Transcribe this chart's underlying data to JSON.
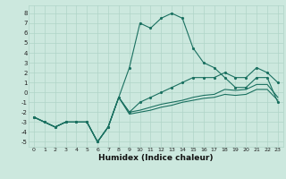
{
  "xlabel": "Humidex (Indice chaleur)",
  "xlim": [
    -0.5,
    23.5
  ],
  "ylim": [
    -5.5,
    8.8
  ],
  "xticks": [
    0,
    1,
    2,
    3,
    4,
    5,
    6,
    7,
    8,
    9,
    10,
    11,
    12,
    13,
    14,
    15,
    16,
    17,
    18,
    19,
    20,
    21,
    22,
    23
  ],
  "yticks": [
    -5,
    -4,
    -3,
    -2,
    -1,
    0,
    1,
    2,
    3,
    4,
    5,
    6,
    7,
    8
  ],
  "bg_color": "#cce8de",
  "line_color": "#1a7060",
  "grid_color": "#b0d4c8",
  "lines": [
    {
      "x": [
        0,
        1,
        2,
        3,
        4,
        5,
        6,
        7,
        8,
        9,
        10,
        11,
        12,
        13,
        14,
        15,
        16,
        17,
        18,
        19,
        20,
        21,
        22,
        23
      ],
      "y": [
        -2.5,
        -3.0,
        -3.5,
        -3.0,
        -3.0,
        -3.0,
        -5.0,
        -3.5,
        -0.5,
        2.5,
        7.0,
        6.5,
        7.5,
        8.0,
        7.5,
        4.5,
        3.0,
        2.5,
        1.5,
        0.5,
        0.5,
        1.5,
        1.5,
        -1.0
      ],
      "marker": true
    },
    {
      "x": [
        0,
        1,
        2,
        3,
        4,
        5,
        6,
        7,
        8,
        9,
        10,
        11,
        12,
        13,
        14,
        15,
        16,
        17,
        18,
        19,
        20,
        21,
        22,
        23
      ],
      "y": [
        -2.5,
        -3.0,
        -3.5,
        -3.0,
        -3.0,
        -3.0,
        -5.0,
        -3.5,
        -0.5,
        -2.0,
        -1.0,
        -0.5,
        0.0,
        0.5,
        1.0,
        1.5,
        1.5,
        1.5,
        2.0,
        1.5,
        1.5,
        2.5,
        2.0,
        1.0
      ],
      "marker": true
    },
    {
      "x": [
        0,
        1,
        2,
        3,
        4,
        5,
        6,
        7,
        8,
        9,
        10,
        11,
        12,
        13,
        14,
        15,
        16,
        17,
        18,
        19,
        20,
        21,
        22,
        23
      ],
      "y": [
        -2.5,
        -3.0,
        -3.5,
        -3.0,
        -3.0,
        -3.0,
        -5.0,
        -3.5,
        -0.5,
        -2.0,
        -1.8,
        -1.5,
        -1.2,
        -1.0,
        -0.8,
        -0.5,
        -0.3,
        -0.2,
        0.3,
        0.2,
        0.3,
        0.8,
        0.8,
        -0.5
      ],
      "marker": false
    },
    {
      "x": [
        0,
        1,
        2,
        3,
        4,
        5,
        6,
        7,
        8,
        9,
        10,
        11,
        12,
        13,
        14,
        15,
        16,
        17,
        18,
        19,
        20,
        21,
        22,
        23
      ],
      "y": [
        -2.5,
        -3.0,
        -3.5,
        -3.0,
        -3.0,
        -3.0,
        -5.0,
        -3.5,
        -0.5,
        -2.2,
        -2.0,
        -1.8,
        -1.5,
        -1.3,
        -1.0,
        -0.8,
        -0.6,
        -0.5,
        -0.2,
        -0.3,
        -0.2,
        0.3,
        0.3,
        -0.8
      ],
      "marker": false
    }
  ]
}
